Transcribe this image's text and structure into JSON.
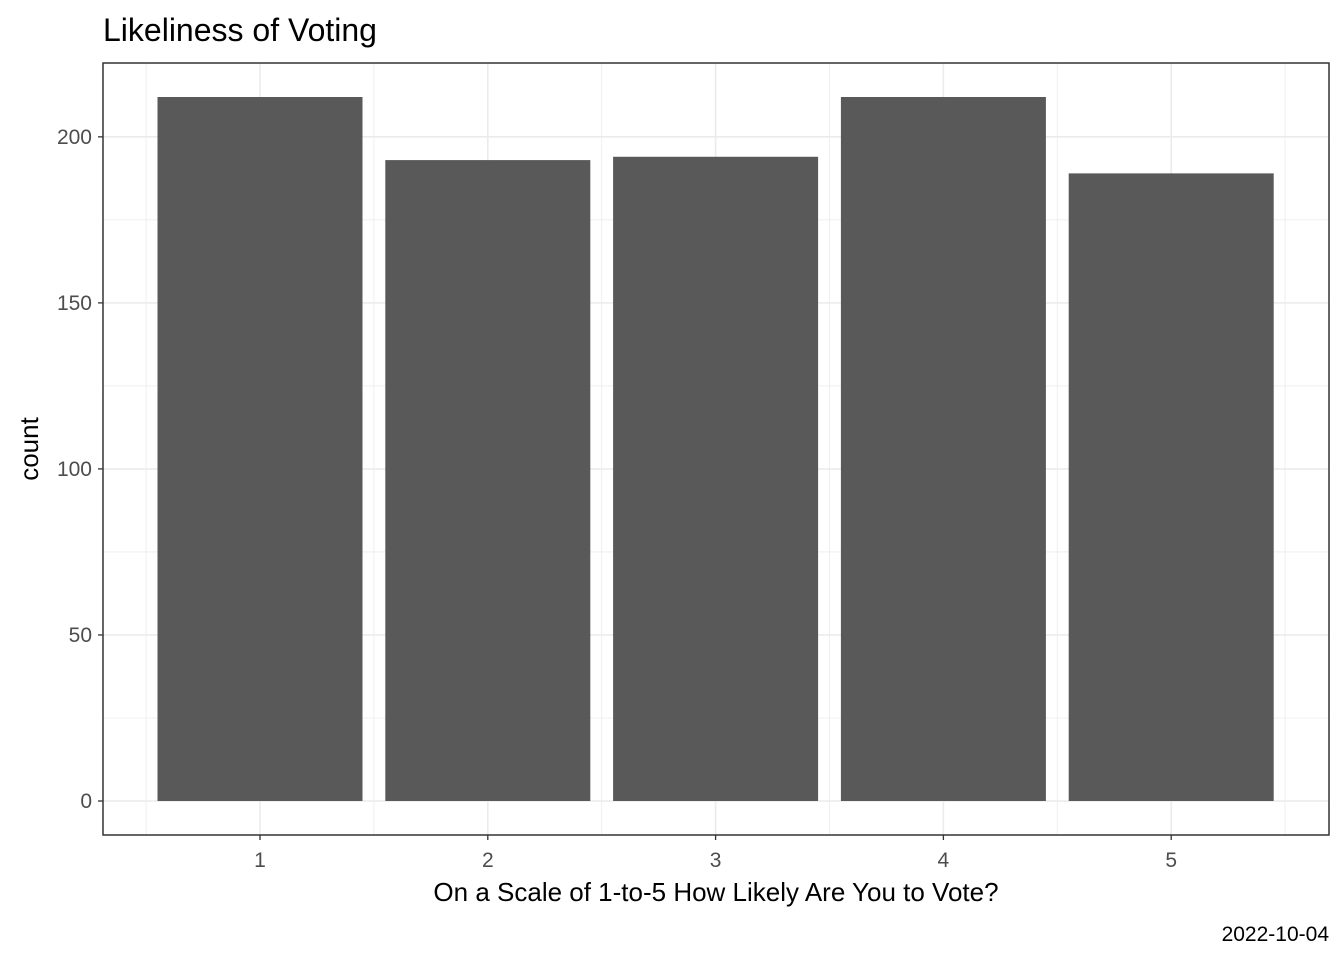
{
  "chart_data": {
    "type": "bar",
    "title": "Likeliness of Voting",
    "xlabel": "On a Scale of 1-to-5 How Likely Are You to Vote?",
    "ylabel": "count",
    "caption": "2022-10-04",
    "categories": [
      "1",
      "2",
      "3",
      "4",
      "5"
    ],
    "values": [
      212,
      193,
      194,
      212,
      189
    ],
    "ylim": [
      0,
      222
    ],
    "yticks": [
      0,
      50,
      100,
      150,
      200
    ],
    "grid": true,
    "bar_color": "#595959",
    "panel_border_color": "#333333",
    "grid_color": "#ebebeb"
  }
}
